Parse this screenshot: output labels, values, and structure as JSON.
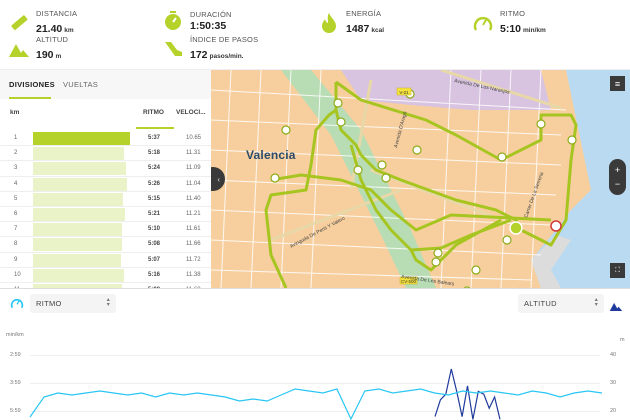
{
  "summary": {
    "distance": {
      "label": "DISTANCIA",
      "value": "21.40",
      "unit": "km",
      "icon": "ruler-icon"
    },
    "altitude": {
      "label": "ALTITUD",
      "value": "190",
      "unit": "m",
      "icon": "mountain-icon"
    },
    "duration": {
      "label": "DURACIÓN",
      "value": "1:50:35",
      "icon": "stopwatch-icon"
    },
    "cadence": {
      "label": "ÍNDICE DE PASOS",
      "value": "172",
      "unit": "pasos/min.",
      "icon": "shoe-icon"
    },
    "energy": {
      "label": "ENERGÍA",
      "value": "1487",
      "unit": "kcal",
      "icon": "flame-icon"
    },
    "pace": {
      "label": "RITMO",
      "value": "5:10",
      "unit": "min/km",
      "icon": "speedometer-icon"
    }
  },
  "splits": {
    "tabs": [
      {
        "label": "DIVISIONES",
        "active": true
      },
      {
        "label": "VUELTAS",
        "active": false
      }
    ],
    "headers": {
      "km": "km",
      "pace": "RITMO",
      "speed": "VELOCI..."
    },
    "rows": [
      {
        "km": "1",
        "pace": "5:37",
        "speed": "10.65",
        "bar": 97
      },
      {
        "km": "2",
        "pace": "5:18",
        "speed": "11.31",
        "bar": 91
      },
      {
        "km": "3",
        "pace": "5:24",
        "speed": "11.09",
        "bar": 93
      },
      {
        "km": "4",
        "pace": "5:26",
        "speed": "11.04",
        "bar": 94
      },
      {
        "km": "5",
        "pace": "5:15",
        "speed": "11.40",
        "bar": 90
      },
      {
        "km": "6",
        "pace": "5:21",
        "speed": "11.21",
        "bar": 92
      },
      {
        "km": "7",
        "pace": "5:10",
        "speed": "11.61",
        "bar": 89
      },
      {
        "km": "8",
        "pace": "5:08",
        "speed": "11.66",
        "bar": 89
      },
      {
        "km": "9",
        "pace": "5:07",
        "speed": "11.72",
        "bar": 88
      },
      {
        "km": "10",
        "pace": "5:16",
        "speed": "11.38",
        "bar": 91
      },
      {
        "km": "11",
        "pace": "5:08",
        "speed": "11.68",
        "bar": 89
      }
    ]
  },
  "map": {
    "city_label": "Valencia",
    "streets": [
      "Avenida De Los Naranjos",
      "Avenida De Les Balears",
      "Avinguda De Peris Y Valero",
      "Carrer De La Serreria",
      "Avenida D'Aragó"
    ],
    "road_badges": [
      "V-21",
      "CV-500"
    ],
    "controls": {
      "layers": "layers-button",
      "zoom_in": "+",
      "zoom_out": "−",
      "fullscreen": "fullscreen-button",
      "collapse": "‹"
    },
    "route_color": "#b5d22a"
  },
  "chart": {
    "left_select": {
      "value": "RITMO",
      "icon": "speedometer-icon"
    },
    "right_select": {
      "value": "ALTITUD",
      "icon": "mountain-icon"
    },
    "left_unit": "min/km",
    "right_unit": "m",
    "left_ticks": [
      "2:59",
      "3:59",
      "5:59"
    ],
    "right_ticks": [
      "40",
      "30",
      "20"
    ],
    "pace_color": "#29c6f5",
    "altitude_color": "#1f3a9c"
  },
  "chart_data": {
    "type": "line",
    "title": "",
    "xlabel": "",
    "ylabel": "min/km",
    "y2label": "m",
    "y_ticks": [
      "2:59",
      "3:59",
      "5:59"
    ],
    "y2_ticks": [
      40,
      30,
      20
    ],
    "series": [
      {
        "name": "RITMO",
        "axis": "left",
        "color": "#29c6f5",
        "values": [
          5.9,
          5.4,
          5.3,
          5.35,
          5.3,
          5.25,
          5.3,
          5.35,
          5.3,
          5.4,
          5.3,
          5.35,
          5.3,
          5.35,
          5.4,
          5.5,
          5.45,
          5.5,
          5.35,
          5.2,
          5.25,
          5.3,
          5.2,
          5.95,
          5.25,
          5.2,
          5.3,
          5.25,
          5.2,
          5.3,
          5.35,
          5.25,
          5.3,
          5.25,
          5.3,
          5.35,
          5.25,
          5.3,
          5.4,
          5.3,
          5.25,
          5.3
        ]
      },
      {
        "name": "ALTITUD",
        "axis": "right",
        "color": "#1f3a9c",
        "values": [
          18,
          24,
          26,
          35,
          27,
          18,
          29,
          17,
          27,
          26,
          21,
          25,
          17
        ]
      }
    ]
  }
}
